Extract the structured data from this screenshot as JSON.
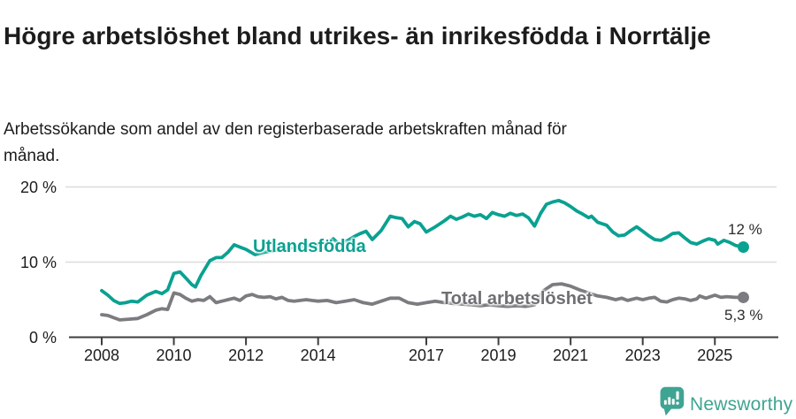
{
  "header": {
    "title": "Högre arbetslöshet bland utrikes- än inrikesfödda i Norrtälje",
    "subtitle": "Arbetssökande som andel av den registerbaserade arbetskraften månad för månad."
  },
  "footer": {
    "brand": "Newsworthy",
    "logo_icon": "speech-bubble-bar-chart-icon"
  },
  "colors": {
    "teal_line": "#0aa191",
    "gray_line": "#7b7b80",
    "gray_label_text": "#6e6e73",
    "end_label_text": "#2b2b2b",
    "axis": "#3d3d3d",
    "grid": "#dcdcdc",
    "text": "#1c1c1c",
    "logo_teal": "#3fa492"
  },
  "chart_data": {
    "type": "line",
    "title": "Högre arbetslöshet bland utrikes- än inrikesfödda i Norrtälje",
    "subtitle": "Arbetssökande som andel av den registerbaserade arbetskraften månad för månad.",
    "xlabel": "",
    "ylabel": "",
    "x_unit": "decimal year (monthly series, values in % of labour force)",
    "xlim": [
      2008.0,
      2025.79
    ],
    "ylim": [
      0,
      20
    ],
    "grid": "horizontal",
    "legend_position": "inline-labels-on-lines",
    "yticks": [
      {
        "value": 0,
        "label": "0 %"
      },
      {
        "value": 10,
        "label": "10 %"
      },
      {
        "value": 20,
        "label": "20 %"
      }
    ],
    "xticks": [
      {
        "value": 2008,
        "label": "2008"
      },
      {
        "value": 2010,
        "label": "2010"
      },
      {
        "value": 2012,
        "label": "2012"
      },
      {
        "value": 2014,
        "label": "2014"
      },
      {
        "value": 2017,
        "label": "2017"
      },
      {
        "value": 2019,
        "label": "2019"
      },
      {
        "value": 2021,
        "label": "2021"
      },
      {
        "value": 2023,
        "label": "2023"
      },
      {
        "value": 2025,
        "label": "2025"
      }
    ],
    "series": [
      {
        "name": "Utlandsfödda",
        "color": "#0aa191",
        "end_value": 12.0,
        "end_label": "12 %",
        "points": [
          [
            2008.0,
            6.2
          ],
          [
            2008.17,
            5.6
          ],
          [
            2008.33,
            4.9
          ],
          [
            2008.5,
            4.5
          ],
          [
            2008.67,
            4.6
          ],
          [
            2008.83,
            4.8
          ],
          [
            2009.0,
            4.7
          ],
          [
            2009.25,
            5.6
          ],
          [
            2009.5,
            6.1
          ],
          [
            2009.67,
            5.8
          ],
          [
            2009.83,
            6.3
          ],
          [
            2010.0,
            8.5
          ],
          [
            2010.17,
            8.7
          ],
          [
            2010.33,
            7.9
          ],
          [
            2010.5,
            7.0
          ],
          [
            2010.6,
            6.7
          ],
          [
            2010.75,
            8.2
          ],
          [
            2011.0,
            10.2
          ],
          [
            2011.17,
            10.6
          ],
          [
            2011.33,
            10.6
          ],
          [
            2011.5,
            11.3
          ],
          [
            2011.67,
            12.3
          ],
          [
            2011.83,
            12.0
          ],
          [
            2012.0,
            11.7
          ],
          [
            2012.25,
            11.0
          ],
          [
            2012.5,
            11.3
          ],
          [
            2012.75,
            11.5
          ],
          [
            2013.0,
            11.7
          ],
          [
            2013.25,
            11.9
          ],
          [
            2013.5,
            12.0
          ],
          [
            2013.75,
            12.2
          ],
          [
            2014.0,
            12.3
          ],
          [
            2014.25,
            12.5
          ],
          [
            2014.42,
            13.1
          ],
          [
            2014.58,
            12.4
          ],
          [
            2014.83,
            12.9
          ],
          [
            2015.0,
            13.4
          ],
          [
            2015.17,
            13.8
          ],
          [
            2015.33,
            14.1
          ],
          [
            2015.5,
            13.0
          ],
          [
            2015.75,
            14.2
          ],
          [
            2016.0,
            16.1
          ],
          [
            2016.17,
            15.9
          ],
          [
            2016.33,
            15.8
          ],
          [
            2016.5,
            14.7
          ],
          [
            2016.67,
            15.4
          ],
          [
            2016.83,
            15.1
          ],
          [
            2017.0,
            14.0
          ],
          [
            2017.25,
            14.7
          ],
          [
            2017.5,
            15.5
          ],
          [
            2017.67,
            16.1
          ],
          [
            2017.83,
            15.7
          ],
          [
            2018.0,
            16.0
          ],
          [
            2018.17,
            16.4
          ],
          [
            2018.33,
            16.1
          ],
          [
            2018.5,
            16.3
          ],
          [
            2018.67,
            15.8
          ],
          [
            2018.83,
            16.6
          ],
          [
            2019.0,
            16.3
          ],
          [
            2019.17,
            16.1
          ],
          [
            2019.33,
            16.5
          ],
          [
            2019.5,
            16.2
          ],
          [
            2019.67,
            16.4
          ],
          [
            2019.83,
            15.9
          ],
          [
            2020.0,
            14.8
          ],
          [
            2020.17,
            16.5
          ],
          [
            2020.33,
            17.7
          ],
          [
            2020.5,
            18.0
          ],
          [
            2020.67,
            18.2
          ],
          [
            2020.83,
            17.9
          ],
          [
            2021.0,
            17.4
          ],
          [
            2021.17,
            16.8
          ],
          [
            2021.33,
            16.4
          ],
          [
            2021.5,
            15.9
          ],
          [
            2021.58,
            16.1
          ],
          [
            2021.75,
            15.3
          ],
          [
            2022.0,
            14.9
          ],
          [
            2022.17,
            14.0
          ],
          [
            2022.33,
            13.5
          ],
          [
            2022.5,
            13.6
          ],
          [
            2022.67,
            14.2
          ],
          [
            2022.83,
            14.7
          ],
          [
            2023.0,
            14.1
          ],
          [
            2023.17,
            13.5
          ],
          [
            2023.33,
            13.0
          ],
          [
            2023.5,
            12.9
          ],
          [
            2023.67,
            13.3
          ],
          [
            2023.83,
            13.8
          ],
          [
            2024.0,
            13.9
          ],
          [
            2024.17,
            13.2
          ],
          [
            2024.33,
            12.6
          ],
          [
            2024.5,
            12.4
          ],
          [
            2024.67,
            12.8
          ],
          [
            2024.83,
            13.1
          ],
          [
            2025.0,
            12.9
          ],
          [
            2025.08,
            12.4
          ],
          [
            2025.25,
            12.9
          ],
          [
            2025.42,
            12.6
          ],
          [
            2025.58,
            12.2
          ],
          [
            2025.79,
            12.0
          ]
        ]
      },
      {
        "name": "Total arbetslöshet",
        "color": "#7b7b80",
        "end_value": 5.3,
        "end_label": "5,3 %",
        "points": [
          [
            2008.0,
            3.0
          ],
          [
            2008.17,
            2.9
          ],
          [
            2008.33,
            2.6
          ],
          [
            2008.5,
            2.3
          ],
          [
            2008.75,
            2.4
          ],
          [
            2009.0,
            2.5
          ],
          [
            2009.25,
            3.0
          ],
          [
            2009.5,
            3.6
          ],
          [
            2009.67,
            3.8
          ],
          [
            2009.83,
            3.7
          ],
          [
            2010.0,
            5.9
          ],
          [
            2010.17,
            5.7
          ],
          [
            2010.33,
            5.2
          ],
          [
            2010.5,
            4.8
          ],
          [
            2010.67,
            5.0
          ],
          [
            2010.83,
            4.9
          ],
          [
            2011.0,
            5.4
          ],
          [
            2011.17,
            4.6
          ],
          [
            2011.33,
            4.8
          ],
          [
            2011.5,
            5.0
          ],
          [
            2011.67,
            5.2
          ],
          [
            2011.83,
            4.9
          ],
          [
            2012.0,
            5.5
          ],
          [
            2012.17,
            5.7
          ],
          [
            2012.33,
            5.4
          ],
          [
            2012.5,
            5.3
          ],
          [
            2012.67,
            5.4
          ],
          [
            2012.83,
            5.1
          ],
          [
            2013.0,
            5.3
          ],
          [
            2013.17,
            4.9
          ],
          [
            2013.33,
            4.8
          ],
          [
            2013.5,
            4.9
          ],
          [
            2013.67,
            5.0
          ],
          [
            2013.83,
            4.9
          ],
          [
            2014.0,
            4.8
          ],
          [
            2014.25,
            4.9
          ],
          [
            2014.5,
            4.6
          ],
          [
            2014.75,
            4.8
          ],
          [
            2015.0,
            5.0
          ],
          [
            2015.25,
            4.6
          ],
          [
            2015.5,
            4.4
          ],
          [
            2015.75,
            4.8
          ],
          [
            2016.0,
            5.2
          ],
          [
            2016.25,
            5.2
          ],
          [
            2016.5,
            4.6
          ],
          [
            2016.75,
            4.4
          ],
          [
            2017.0,
            4.6
          ],
          [
            2017.25,
            4.8
          ],
          [
            2017.5,
            4.6
          ],
          [
            2017.75,
            4.5
          ],
          [
            2018.0,
            4.4
          ],
          [
            2018.25,
            4.3
          ],
          [
            2018.5,
            4.2
          ],
          [
            2018.75,
            4.3
          ],
          [
            2019.0,
            4.2
          ],
          [
            2019.25,
            4.1
          ],
          [
            2019.5,
            4.2
          ],
          [
            2019.75,
            4.1
          ],
          [
            2020.0,
            4.3
          ],
          [
            2020.25,
            6.2
          ],
          [
            2020.5,
            7.0
          ],
          [
            2020.75,
            7.1
          ],
          [
            2021.0,
            6.8
          ],
          [
            2021.25,
            6.3
          ],
          [
            2021.5,
            5.9
          ],
          [
            2021.75,
            5.5
          ],
          [
            2022.0,
            5.3
          ],
          [
            2022.25,
            5.0
          ],
          [
            2022.42,
            5.2
          ],
          [
            2022.58,
            4.9
          ],
          [
            2022.83,
            5.2
          ],
          [
            2023.0,
            5.0
          ],
          [
            2023.17,
            5.2
          ],
          [
            2023.33,
            5.3
          ],
          [
            2023.5,
            4.8
          ],
          [
            2023.67,
            4.7
          ],
          [
            2023.83,
            5.0
          ],
          [
            2024.0,
            5.2
          ],
          [
            2024.17,
            5.1
          ],
          [
            2024.33,
            4.9
          ],
          [
            2024.5,
            5.1
          ],
          [
            2024.58,
            5.5
          ],
          [
            2024.75,
            5.2
          ],
          [
            2025.0,
            5.6
          ],
          [
            2025.17,
            5.3
          ],
          [
            2025.33,
            5.4
          ],
          [
            2025.58,
            5.3
          ],
          [
            2025.79,
            5.3
          ]
        ]
      }
    ]
  }
}
